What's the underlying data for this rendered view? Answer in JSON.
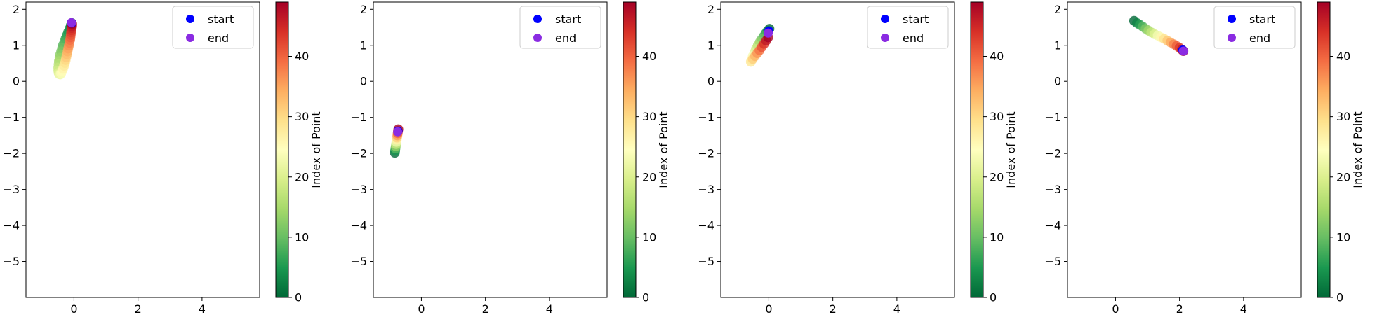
{
  "chart_data": [
    {
      "type": "scatter",
      "title": "",
      "xlabel": "",
      "ylabel": "",
      "xlim": [
        -1.5,
        5.8
      ],
      "ylim": [
        -6.0,
        2.2
      ],
      "xticks": [
        0,
        2,
        4
      ],
      "yticks": [
        -5,
        -4,
        -3,
        -2,
        -1,
        0,
        1,
        2
      ],
      "legend": {
        "placement": "top-right",
        "entries": [
          {
            "label": "start",
            "color": "#0000ff"
          },
          {
            "label": "end",
            "color": "#8a2be2"
          }
        ]
      },
      "colorbar": {
        "label": "Index of Point",
        "min": 0,
        "max": 49,
        "ticks": [
          0,
          10,
          20,
          30,
          40
        ],
        "colormap": "RdYlGn_r"
      },
      "points": [
        {
          "x": -0.07,
          "y": 1.62
        },
        {
          "x": -0.1,
          "y": 1.55
        },
        {
          "x": -0.14,
          "y": 1.46
        },
        {
          "x": -0.18,
          "y": 1.37
        },
        {
          "x": -0.22,
          "y": 1.28
        },
        {
          "x": -0.26,
          "y": 1.19
        },
        {
          "x": -0.3,
          "y": 1.1
        },
        {
          "x": -0.34,
          "y": 1.01
        },
        {
          "x": -0.37,
          "y": 0.92
        },
        {
          "x": -0.4,
          "y": 0.83
        },
        {
          "x": -0.43,
          "y": 0.74
        },
        {
          "x": -0.45,
          "y": 0.65
        },
        {
          "x": -0.47,
          "y": 0.56
        },
        {
          "x": -0.48,
          "y": 0.47
        },
        {
          "x": -0.49,
          "y": 0.38
        },
        {
          "x": -0.49,
          "y": 0.3
        },
        {
          "x": -0.48,
          "y": 0.24
        },
        {
          "x": -0.46,
          "y": 0.2
        },
        {
          "x": -0.43,
          "y": 0.19
        },
        {
          "x": -0.4,
          "y": 0.22
        },
        {
          "x": -0.37,
          "y": 0.28
        },
        {
          "x": -0.34,
          "y": 0.35
        },
        {
          "x": -0.31,
          "y": 0.43
        },
        {
          "x": -0.28,
          "y": 0.51
        },
        {
          "x": -0.26,
          "y": 0.59
        },
        {
          "x": -0.24,
          "y": 0.67
        },
        {
          "x": -0.22,
          "y": 0.75
        },
        {
          "x": -0.2,
          "y": 0.83
        },
        {
          "x": -0.18,
          "y": 0.91
        },
        {
          "x": -0.16,
          "y": 0.99
        },
        {
          "x": -0.14,
          "y": 1.07
        },
        {
          "x": -0.12,
          "y": 1.15
        },
        {
          "x": -0.11,
          "y": 1.22
        },
        {
          "x": -0.1,
          "y": 1.29
        },
        {
          "x": -0.09,
          "y": 1.36
        },
        {
          "x": -0.08,
          "y": 1.42
        },
        {
          "x": -0.07,
          "y": 1.48
        },
        {
          "x": -0.06,
          "y": 1.53
        },
        {
          "x": -0.06,
          "y": 1.57
        },
        {
          "x": -0.06,
          "y": 1.6
        }
      ],
      "start": {
        "x": -0.07,
        "y": 1.62
      },
      "end": {
        "x": -0.08,
        "y": 1.63
      }
    },
    {
      "type": "scatter",
      "title": "",
      "xlabel": "",
      "ylabel": "",
      "xlim": [
        -1.5,
        5.8
      ],
      "ylim": [
        -6.0,
        2.2
      ],
      "xticks": [
        0,
        2,
        4
      ],
      "yticks": [
        -5,
        -4,
        -3,
        -2,
        -1,
        0,
        1,
        2
      ],
      "legend": {
        "placement": "top-right",
        "entries": [
          {
            "label": "start",
            "color": "#0000ff"
          },
          {
            "label": "end",
            "color": "#8a2be2"
          }
        ]
      },
      "colorbar": {
        "label": "Index of Point",
        "min": 0,
        "max": 49,
        "ticks": [
          0,
          10,
          20,
          30,
          40
        ],
        "colormap": "RdYlGn_r"
      },
      "points": [
        {
          "x": -0.83,
          "y": -1.98
        },
        {
          "x": -0.82,
          "y": -1.92
        },
        {
          "x": -0.81,
          "y": -1.86
        },
        {
          "x": -0.8,
          "y": -1.8
        },
        {
          "x": -0.79,
          "y": -1.74
        },
        {
          "x": -0.78,
          "y": -1.68
        },
        {
          "x": -0.77,
          "y": -1.62
        },
        {
          "x": -0.76,
          "y": -1.56
        },
        {
          "x": -0.75,
          "y": -1.5
        },
        {
          "x": -0.74,
          "y": -1.44
        },
        {
          "x": -0.73,
          "y": -1.38
        },
        {
          "x": -0.72,
          "y": -1.33
        }
      ],
      "start": {
        "x": -0.73,
        "y": -1.38
      },
      "end": {
        "x": -0.74,
        "y": -1.4
      }
    },
    {
      "type": "scatter",
      "title": "",
      "xlabel": "",
      "ylabel": "",
      "xlim": [
        -1.5,
        5.8
      ],
      "ylim": [
        -6.0,
        2.2
      ],
      "xticks": [
        0,
        2,
        4
      ],
      "yticks": [
        -5,
        -4,
        -3,
        -2,
        -1,
        0,
        1,
        2
      ],
      "legend": {
        "placement": "top-right",
        "entries": [
          {
            "label": "start",
            "color": "#0000ff"
          },
          {
            "label": "end",
            "color": "#8a2be2"
          }
        ]
      },
      "colorbar": {
        "label": "Index of Point",
        "min": 0,
        "max": 49,
        "ticks": [
          0,
          10,
          20,
          30,
          40
        ],
        "colormap": "RdYlGn_r"
      },
      "points": [
        {
          "x": 0.02,
          "y": 1.46
        },
        {
          "x": -0.04,
          "y": 1.4
        },
        {
          "x": -0.1,
          "y": 1.33
        },
        {
          "x": -0.16,
          "y": 1.25
        },
        {
          "x": -0.22,
          "y": 1.17
        },
        {
          "x": -0.28,
          "y": 1.09
        },
        {
          "x": -0.34,
          "y": 1.0
        },
        {
          "x": -0.4,
          "y": 0.9
        },
        {
          "x": -0.45,
          "y": 0.8
        },
        {
          "x": -0.5,
          "y": 0.7
        },
        {
          "x": -0.54,
          "y": 0.6
        },
        {
          "x": -0.56,
          "y": 0.54
        },
        {
          "x": -0.5,
          "y": 0.62
        },
        {
          "x": -0.43,
          "y": 0.7
        },
        {
          "x": -0.36,
          "y": 0.78
        },
        {
          "x": -0.29,
          "y": 0.86
        },
        {
          "x": -0.22,
          "y": 0.95
        },
        {
          "x": -0.15,
          "y": 1.04
        },
        {
          "x": -0.08,
          "y": 1.13
        },
        {
          "x": -0.02,
          "y": 1.22
        }
      ],
      "start": {
        "x": 0.0,
        "y": 1.4
      },
      "end": {
        "x": -0.02,
        "y": 1.34
      }
    },
    {
      "type": "scatter",
      "title": "",
      "xlabel": "",
      "ylabel": "",
      "xlim": [
        -1.5,
        5.8
      ],
      "ylim": [
        -6.0,
        2.2
      ],
      "xticks": [
        0,
        2,
        4
      ],
      "yticks": [
        -5,
        -4,
        -3,
        -2,
        -1,
        0,
        1,
        2
      ],
      "legend": {
        "placement": "top-right",
        "entries": [
          {
            "label": "start",
            "color": "#0000ff"
          },
          {
            "label": "end",
            "color": "#8a2be2"
          }
        ]
      },
      "colorbar": {
        "label": "Index of Point",
        "min": 0,
        "max": 49,
        "ticks": [
          0,
          10,
          20,
          30,
          40
        ],
        "colormap": "RdYlGn_r"
      },
      "points": [
        {
          "x": 0.58,
          "y": 1.68
        },
        {
          "x": 0.67,
          "y": 1.62
        },
        {
          "x": 0.76,
          "y": 1.57
        },
        {
          "x": 0.85,
          "y": 1.52
        },
        {
          "x": 0.94,
          "y": 1.46
        },
        {
          "x": 1.03,
          "y": 1.41
        },
        {
          "x": 1.12,
          "y": 1.36
        },
        {
          "x": 1.22,
          "y": 1.31
        },
        {
          "x": 1.32,
          "y": 1.27
        },
        {
          "x": 1.42,
          "y": 1.22
        },
        {
          "x": 1.52,
          "y": 1.18
        },
        {
          "x": 1.62,
          "y": 1.13
        },
        {
          "x": 1.72,
          "y": 1.08
        },
        {
          "x": 1.82,
          "y": 1.03
        },
        {
          "x": 1.91,
          "y": 0.98
        },
        {
          "x": 2.0,
          "y": 0.93
        },
        {
          "x": 2.07,
          "y": 0.88
        },
        {
          "x": 2.12,
          "y": 0.84
        }
      ],
      "start": {
        "x": 2.1,
        "y": 0.87
      },
      "end": {
        "x": 2.12,
        "y": 0.84
      }
    }
  ]
}
